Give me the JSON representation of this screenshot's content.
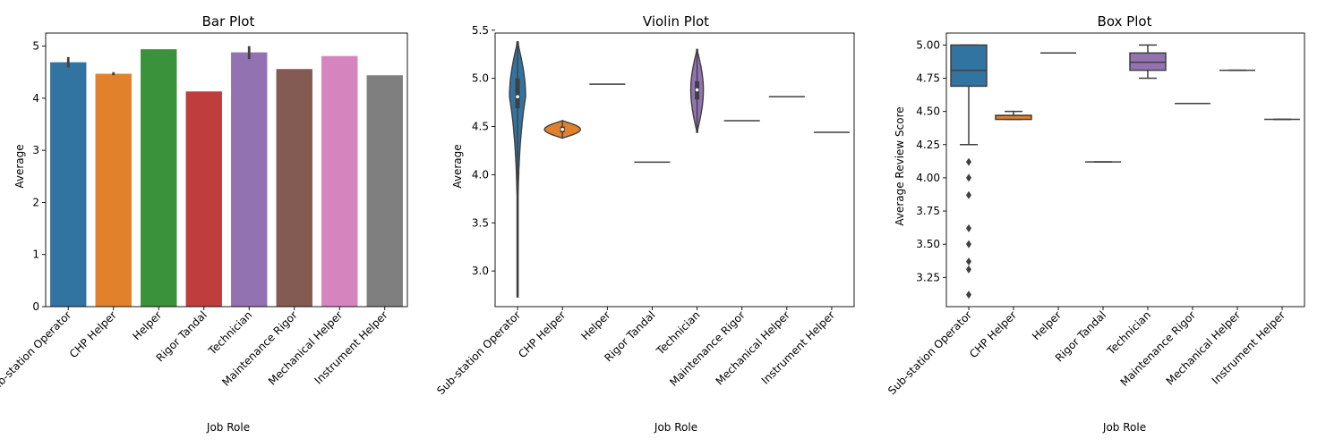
{
  "categories": [
    "Sub-station Operator",
    "CHP Helper",
    "Helper",
    "Rigor Tandal",
    "Technician",
    "Maintenance Rigor",
    "Mechanical Helper",
    "Instrument Helper"
  ],
  "colors": [
    "#3274a1",
    "#e1812c",
    "#3a923a",
    "#c03d3e",
    "#9372b2",
    "#845b53",
    "#d684bd",
    "#7f7f7f"
  ],
  "chart_data": [
    {
      "type": "bar",
      "title": "Bar Plot",
      "xlabel": "Job Role",
      "ylabel": "Average",
      "ylim": [
        0,
        5.25
      ],
      "yticks": [
        0,
        1,
        2,
        3,
        4,
        5
      ],
      "values": [
        4.69,
        4.47,
        4.94,
        4.13,
        4.88,
        4.56,
        4.81,
        4.44
      ],
      "error_bars": [
        [
          4.59,
          4.79
        ],
        [
          4.44,
          4.5
        ],
        null,
        null,
        [
          4.75,
          5.0
        ],
        null,
        null,
        null
      ]
    },
    {
      "type": "violin",
      "title": "Violin Plot",
      "xlabel": "Job Role",
      "ylabel": "Average",
      "ylim": [
        2.63,
        5.47
      ],
      "yticks": [
        3.0,
        3.5,
        4.0,
        4.5,
        5.0,
        5.5
      ],
      "ytick_labels": [
        "3.0",
        "3.5",
        "4.0",
        "4.5",
        "5.0",
        "5.5"
      ],
      "violins": [
        {
          "min": 2.73,
          "max": 5.38,
          "median": 4.81,
          "q1": 4.69,
          "q3": 5.0
        },
        {
          "min": 4.38,
          "max": 4.56,
          "median": 4.47,
          "q1": 4.44,
          "q3": 4.5
        },
        {
          "value": 4.94
        },
        {
          "value": 4.13
        },
        {
          "min": 4.44,
          "max": 5.3,
          "median": 4.88,
          "q1": 4.78,
          "q3": 4.97
        },
        {
          "value": 4.56
        },
        {
          "value": 4.81
        },
        {
          "value": 4.44
        }
      ]
    },
    {
      "type": "box",
      "title": "Box Plot",
      "xlabel": "Job Role",
      "ylabel": "Average Review Score",
      "ylim": [
        3.03,
        5.09
      ],
      "yticks": [
        3.25,
        3.5,
        3.75,
        4.0,
        4.25,
        4.5,
        4.75,
        5.0
      ],
      "ytick_labels": [
        "3.25",
        "3.50",
        "3.75",
        "4.00",
        "4.25",
        "4.50",
        "4.75",
        "5.00"
      ],
      "boxes": [
        {
          "whislo": 4.25,
          "q1": 4.69,
          "median": 4.81,
          "q3": 5.0,
          "whishi": 5.0,
          "fliers": [
            4.12,
            4.0,
            3.87,
            3.62,
            3.5,
            3.37,
            3.31,
            3.12
          ]
        },
        {
          "whislo": 4.44,
          "q1": 4.44,
          "median": 4.47,
          "q3": 4.47,
          "whishi": 4.5,
          "fliers": []
        },
        {
          "whislo": 4.94,
          "q1": 4.94,
          "median": 4.94,
          "q3": 4.94,
          "whishi": 4.94,
          "fliers": []
        },
        {
          "whislo": 4.12,
          "q1": 4.12,
          "median": 4.12,
          "q3": 4.12,
          "whishi": 4.12,
          "fliers": []
        },
        {
          "whislo": 4.75,
          "q1": 4.81,
          "median": 4.87,
          "q3": 4.94,
          "whishi": 5.0,
          "fliers": []
        },
        {
          "whislo": 4.56,
          "q1": 4.56,
          "median": 4.56,
          "q3": 4.56,
          "whishi": 4.56,
          "fliers": []
        },
        {
          "whislo": 4.81,
          "q1": 4.81,
          "median": 4.81,
          "q3": 4.81,
          "whishi": 4.81,
          "fliers": []
        },
        {
          "whislo": 4.44,
          "q1": 4.44,
          "median": 4.44,
          "q3": 4.44,
          "whishi": 4.44,
          "fliers": []
        }
      ]
    }
  ]
}
